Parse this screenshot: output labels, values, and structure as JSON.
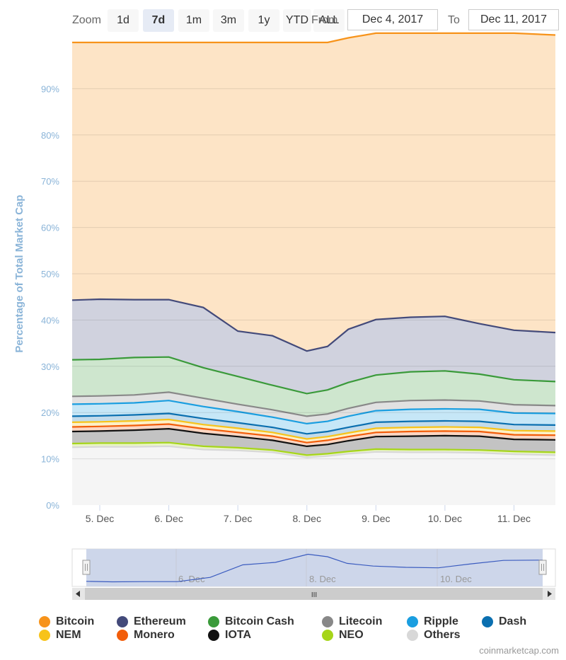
{
  "zoom": {
    "label": "Zoom",
    "buttons": [
      "1d",
      "7d",
      "1m",
      "3m",
      "1y",
      "YTD",
      "ALL"
    ],
    "active": "7d"
  },
  "range": {
    "from_label": "From",
    "from_value": "Dec 4, 2017",
    "to_label": "To",
    "to_value": "Dec 11, 2017"
  },
  "navigator": {
    "tick_labels": [
      "6. Dec",
      "8. Dec",
      "10. Dec"
    ],
    "scroll_grip": "III"
  },
  "credits": "coinmarketcap.com",
  "colors": {
    "Bitcoin": "#f7931a",
    "Ethereum": "#434a7a",
    "Bitcoin Cash": "#3a9a3a",
    "Litecoin": "#888888",
    "Ripple": "#1a9ee0",
    "Dash": "#0a6fb0",
    "NEM": "#f7c31a",
    "Monero": "#f25d0a",
    "IOTA": "#111111",
    "NEO": "#a6d51a",
    "Others": "#d8d8d8"
  },
  "chart_data": {
    "type": "area",
    "stacked": "percent",
    "title": "",
    "xlabel": "",
    "ylabel": "Percentage of Total Market Cap",
    "ylim": [
      0,
      100
    ],
    "yticks": [
      "0%",
      "10%",
      "20%",
      "30%",
      "40%",
      "50%",
      "60%",
      "70%",
      "80%",
      "90%"
    ],
    "xlim": [
      4.6,
      11.6
    ],
    "xticks": [
      5,
      6,
      7,
      8,
      9,
      10,
      11
    ],
    "xtick_labels": [
      "5. Dec",
      "6. Dec",
      "7. Dec",
      "8. Dec",
      "9. Dec",
      "10. Dec",
      "11. Dec"
    ],
    "x": [
      4.6,
      5.0,
      5.5,
      6.0,
      6.5,
      7.0,
      7.5,
      8.0,
      8.3,
      8.6,
      9.0,
      9.5,
      10.0,
      10.5,
      11.0,
      11.6
    ],
    "series": [
      {
        "name": "Others",
        "values": [
          12.5,
          12.6,
          12.6,
          12.7,
          12.0,
          11.8,
          11.4,
          10.3,
          10.6,
          11.1,
          11.5,
          11.4,
          11.4,
          11.3,
          11.0,
          10.8
        ]
      },
      {
        "name": "NEO",
        "values": [
          0.8,
          0.8,
          0.8,
          0.8,
          0.7,
          0.6,
          0.5,
          0.5,
          0.5,
          0.5,
          0.6,
          0.6,
          0.6,
          0.6,
          0.6,
          0.6
        ]
      },
      {
        "name": "IOTA",
        "values": [
          2.6,
          2.6,
          2.8,
          3.0,
          2.8,
          2.4,
          2.1,
          1.9,
          2.0,
          2.3,
          2.7,
          2.9,
          3.0,
          3.0,
          2.6,
          2.7
        ]
      },
      {
        "name": "Monero",
        "values": [
          1.0,
          1.0,
          1.0,
          1.0,
          1.0,
          0.9,
          0.9,
          0.8,
          0.9,
          0.9,
          0.9,
          1.0,
          1.0,
          1.0,
          1.0,
          1.0
        ]
      },
      {
        "name": "NEM",
        "values": [
          1.0,
          1.0,
          1.0,
          1.0,
          0.9,
          0.9,
          0.8,
          0.8,
          0.8,
          0.8,
          0.9,
          0.9,
          0.9,
          0.9,
          0.9,
          0.9
        ]
      },
      {
        "name": "Dash",
        "values": [
          1.3,
          1.3,
          1.3,
          1.3,
          1.3,
          1.2,
          1.1,
          1.1,
          1.1,
          1.2,
          1.3,
          1.3,
          1.3,
          1.3,
          1.3,
          1.3
        ]
      },
      {
        "name": "Ripple",
        "values": [
          2.6,
          2.6,
          2.6,
          2.8,
          2.6,
          2.4,
          2.2,
          2.2,
          2.2,
          2.4,
          2.5,
          2.6,
          2.6,
          2.6,
          2.5,
          2.5
        ]
      },
      {
        "name": "Litecoin",
        "values": [
          1.7,
          1.7,
          1.7,
          1.8,
          1.8,
          1.6,
          1.6,
          1.6,
          1.6,
          1.7,
          1.8,
          1.9,
          1.9,
          1.8,
          1.8,
          1.7
        ]
      },
      {
        "name": "Bitcoin Cash",
        "values": [
          7.9,
          7.9,
          8.1,
          7.6,
          6.6,
          6.0,
          5.3,
          4.9,
          5.2,
          5.6,
          5.9,
          6.2,
          6.3,
          5.8,
          5.4,
          5.2
        ]
      },
      {
        "name": "Ethereum",
        "values": [
          12.9,
          13.0,
          12.5,
          12.4,
          13.0,
          9.8,
          10.7,
          9.2,
          9.4,
          11.5,
          12.0,
          11.8,
          11.8,
          10.9,
          10.7,
          10.6
        ]
      },
      {
        "name": "Bitcoin",
        "values": [
          55.7,
          55.5,
          55.6,
          55.6,
          57.3,
          62.4,
          63.4,
          66.7,
          65.7,
          63.0,
          61.9,
          61.4,
          61.2,
          62.8,
          64.2,
          64.3
        ]
      }
    ],
    "legend_placement": "bottom",
    "grid": true
  }
}
